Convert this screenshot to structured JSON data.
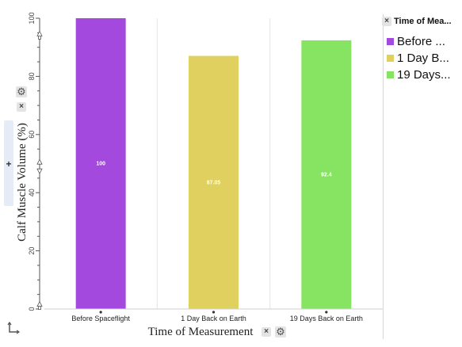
{
  "chart_data": {
    "type": "bar",
    "categories": [
      "Before Spaceflight",
      "1 Day Back on Earth",
      "19 Days Back on Earth"
    ],
    "values": [
      100,
      87.05,
      92.4
    ],
    "data_labels": [
      "100",
      "87.05",
      "92.4"
    ],
    "colors": [
      "#a349dd",
      "#dfd05f",
      "#87e462"
    ],
    "xlabel": "Time of Measurement",
    "ylabel": "Calf Muscle Volume (%)",
    "ylim": [
      0,
      100
    ],
    "yticks": [
      0,
      20,
      40,
      60,
      80,
      100
    ],
    "grid": "vertical separators",
    "legend_position": "right"
  },
  "legend": {
    "title": "Time of Mea...",
    "items": [
      {
        "label": "Before ...",
        "color": "#a349dd"
      },
      {
        "label": "1 Day B...",
        "color": "#dfd05f"
      },
      {
        "label": "19 Days...",
        "color": "#87e462"
      }
    ]
  },
  "controls": {
    "close_glyph": "×",
    "gear_glyph": "⚙",
    "plus_glyph": "+"
  },
  "icons": [
    "gear-icon",
    "close-icon",
    "plus-icon",
    "axis-corner-icon"
  ]
}
